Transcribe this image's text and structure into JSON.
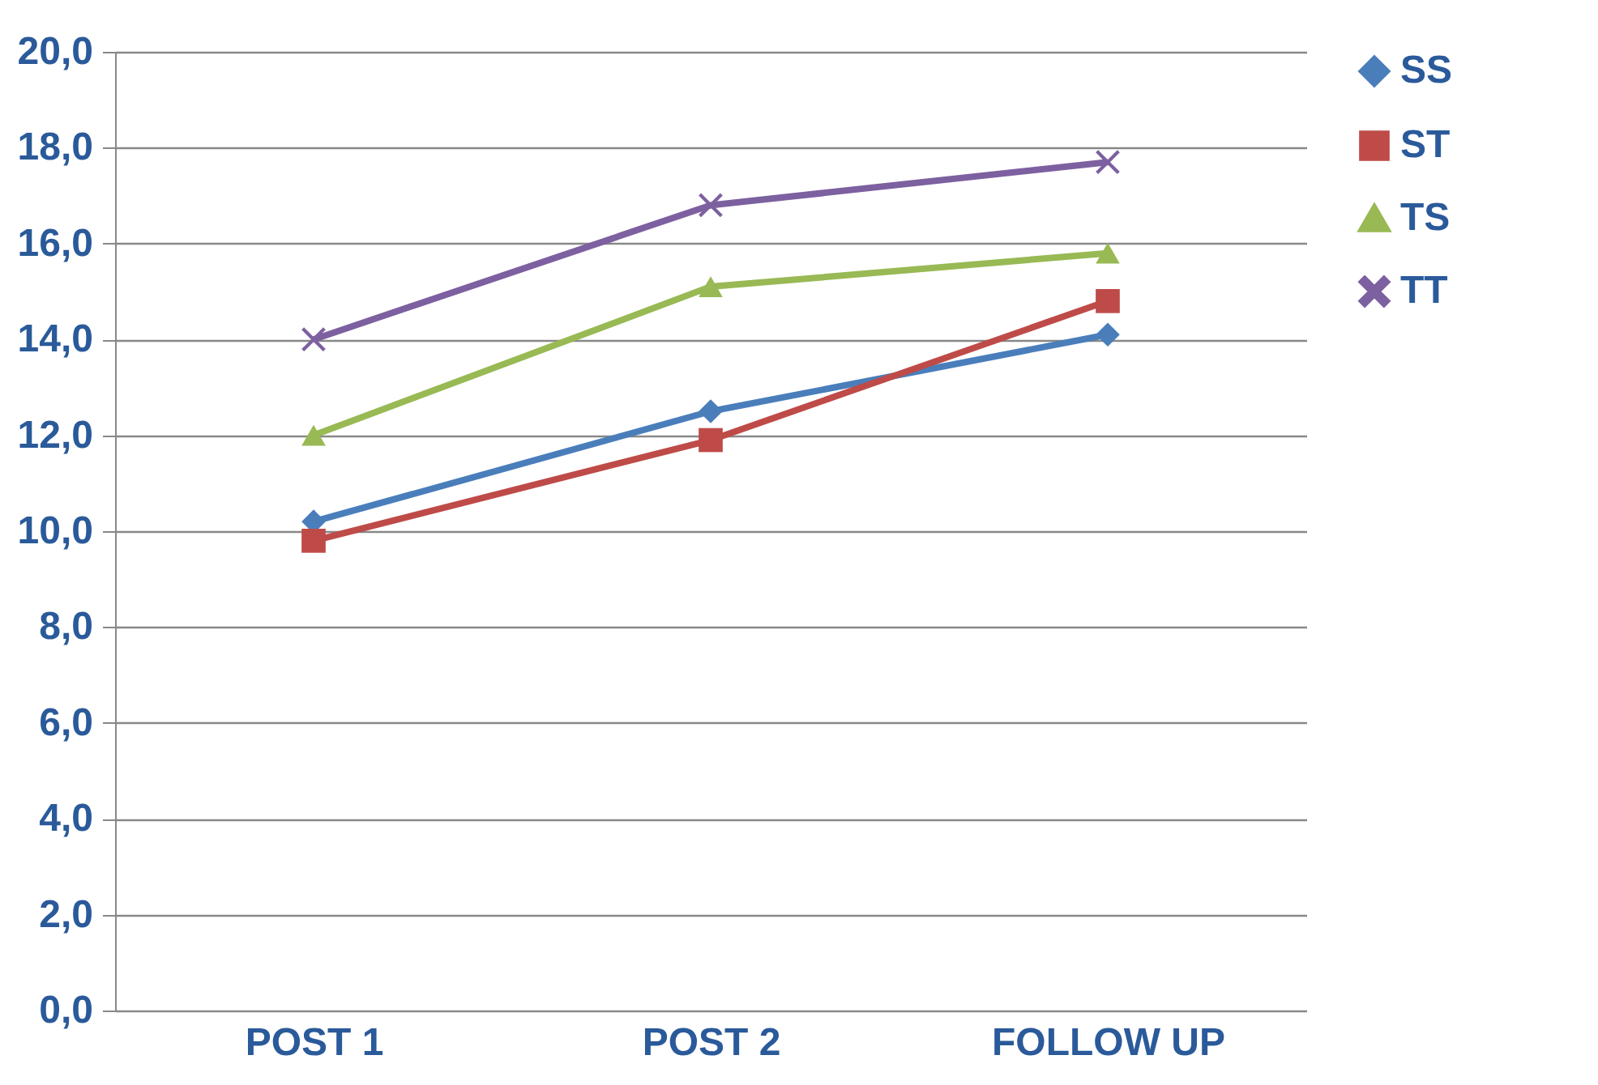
{
  "chart_data": {
    "type": "line",
    "categories": [
      "POST 1",
      "POST 2",
      "FOLLOW UP"
    ],
    "series": [
      {
        "name": "SS",
        "color": "#4a7ebb",
        "marker": "diamond",
        "values": [
          10.2,
          12.5,
          14.1
        ]
      },
      {
        "name": "ST",
        "color": "#be4b48",
        "marker": "square",
        "values": [
          9.8,
          11.9,
          14.8
        ]
      },
      {
        "name": "TS",
        "color": "#98b954",
        "marker": "triangle",
        "values": [
          12.0,
          15.1,
          15.8
        ]
      },
      {
        "name": "TT",
        "color": "#7d60a0",
        "marker": "cross",
        "values": [
          14.0,
          16.8,
          17.7
        ]
      }
    ],
    "ylim": [
      0,
      20
    ],
    "yticks": [
      {
        "value": 0,
        "label": "0,0"
      },
      {
        "value": 2,
        "label": "2,0"
      },
      {
        "value": 4,
        "label": "4,0"
      },
      {
        "value": 6,
        "label": "6,0"
      },
      {
        "value": 8,
        "label": "8,0"
      },
      {
        "value": 10,
        "label": "10,0"
      },
      {
        "value": 12,
        "label": "12,0"
      },
      {
        "value": 14,
        "label": "14,0"
      },
      {
        "value": 16,
        "label": "16,0"
      },
      {
        "value": 18,
        "label": "18,0"
      },
      {
        "value": 20,
        "label": "20,0"
      }
    ],
    "grid": "y",
    "legend": "right",
    "line_style": "solid"
  }
}
